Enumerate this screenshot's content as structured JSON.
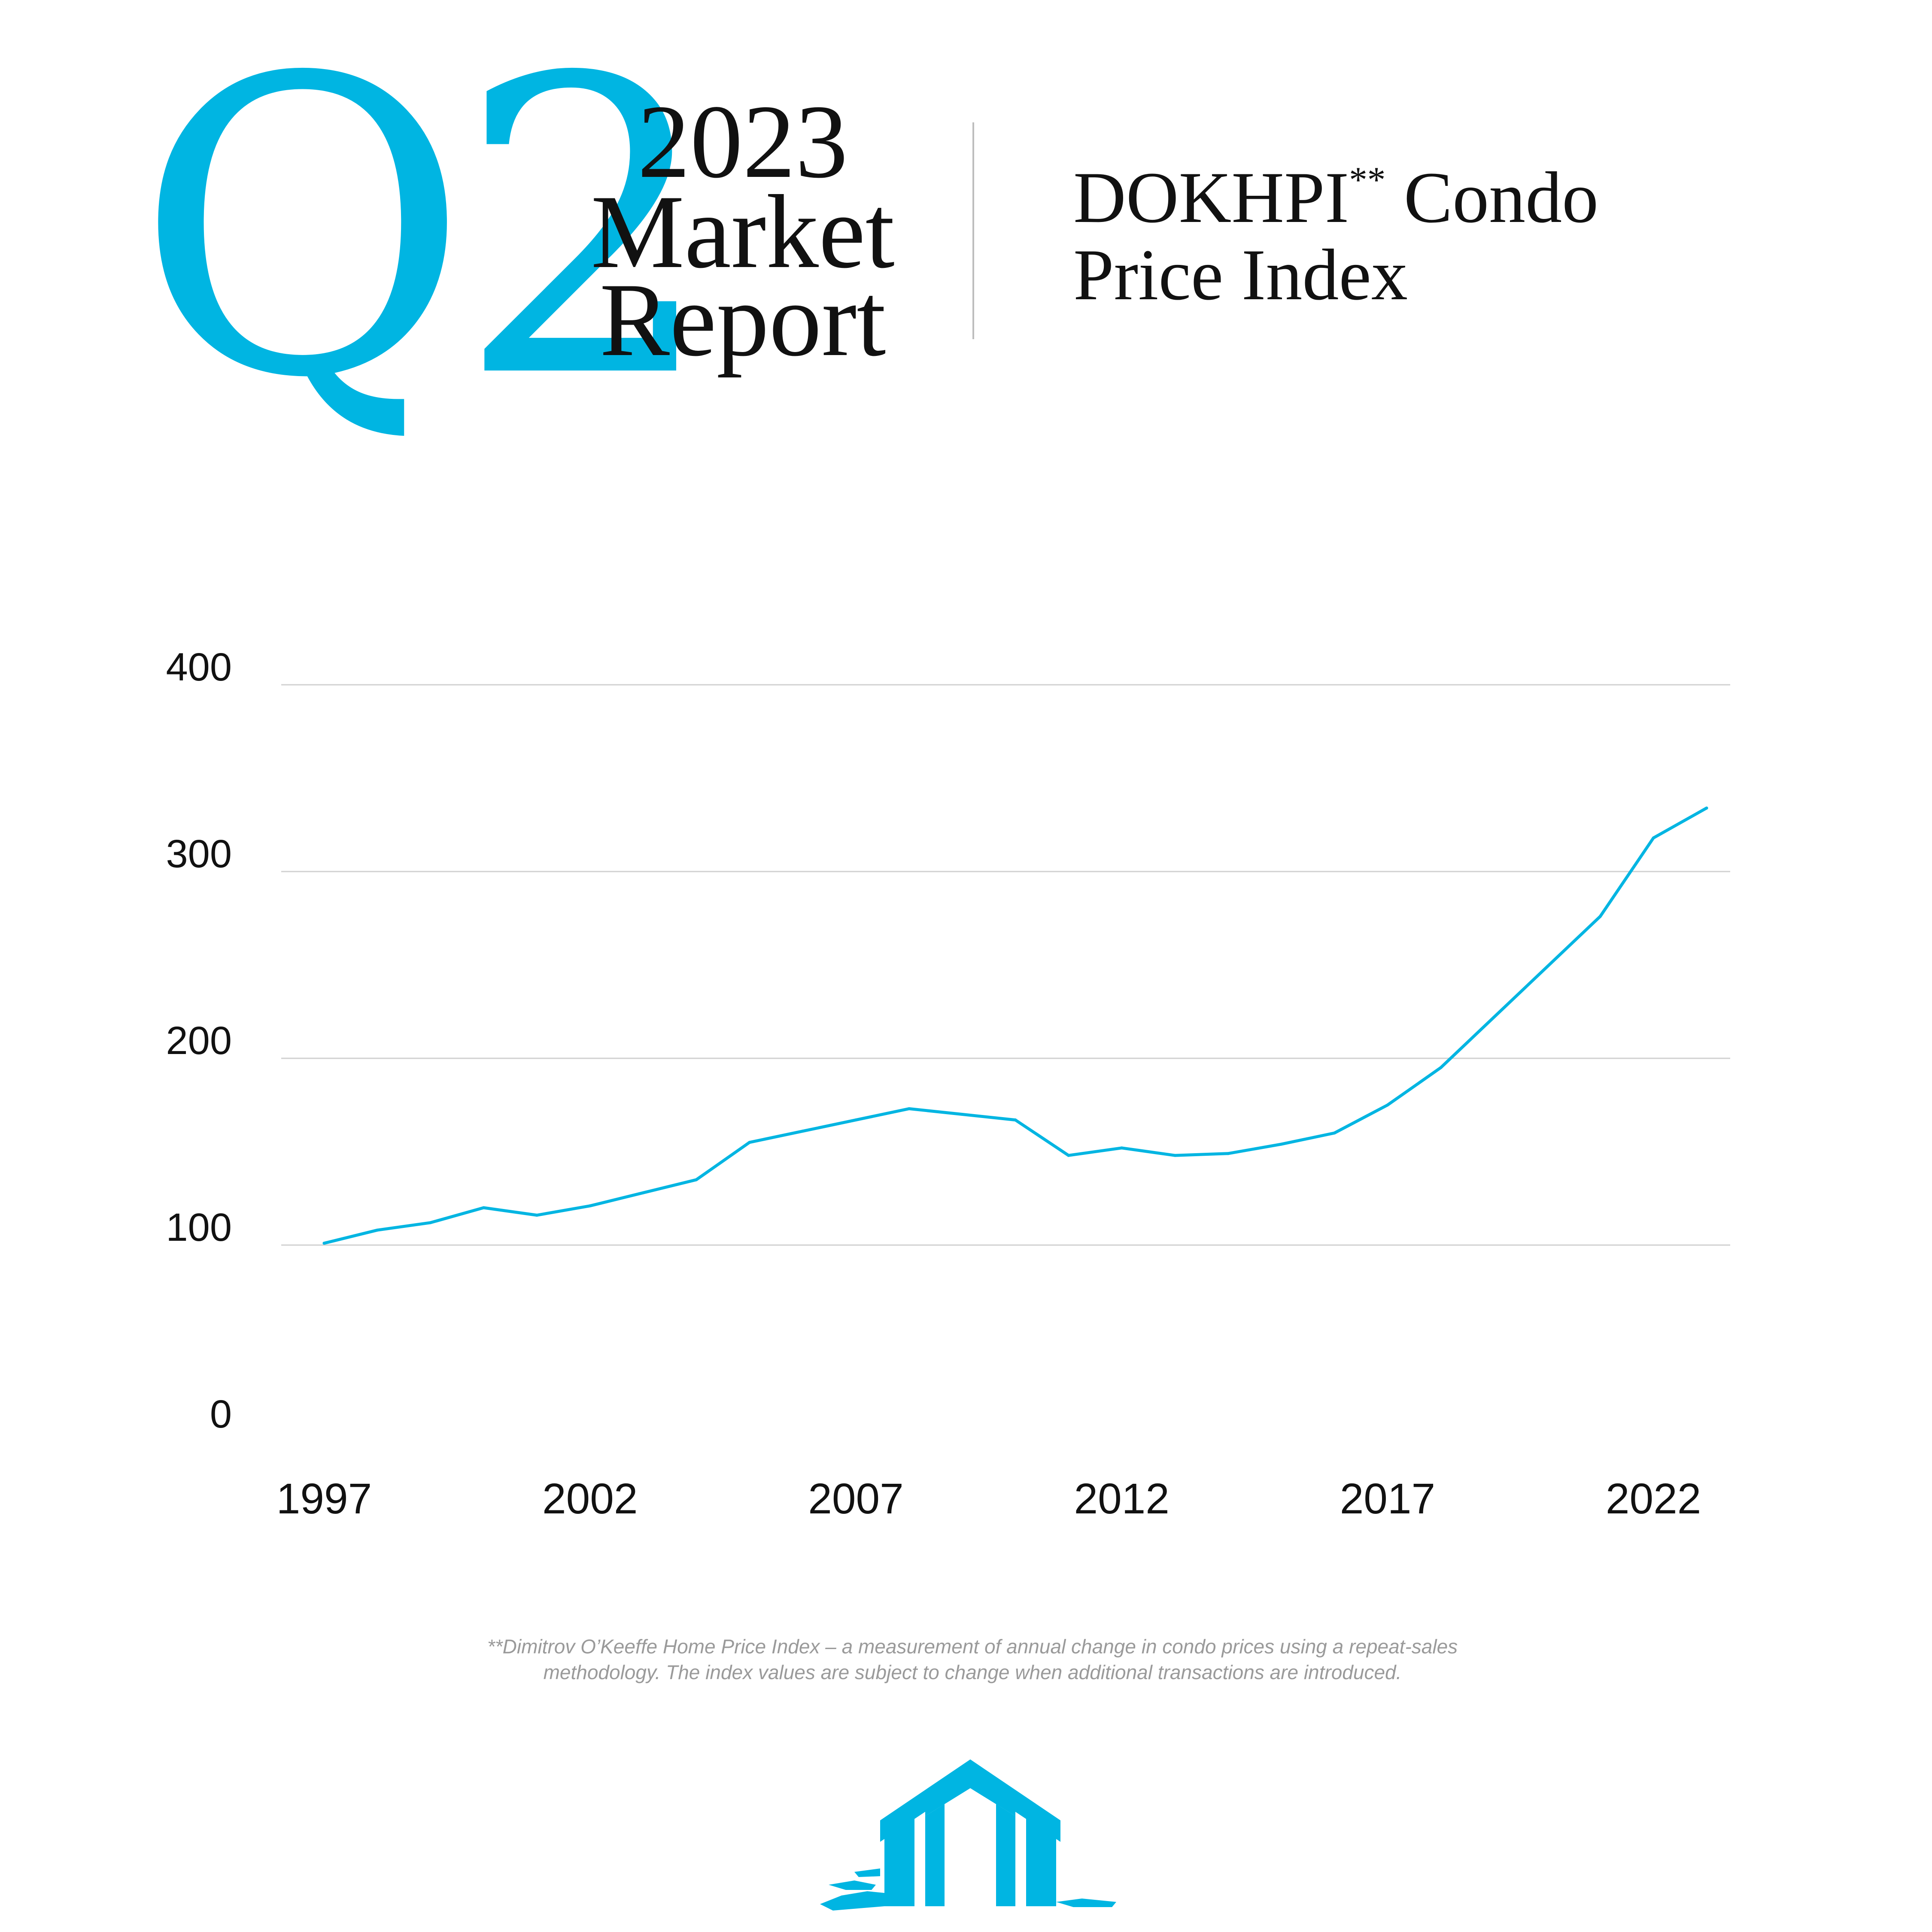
{
  "header": {
    "quarter": "Q2",
    "year": "2023",
    "line2": "Market",
    "line3": "Report",
    "title_main": "DOKHPI",
    "title_mark": "**",
    "title_suffix": " Condo",
    "title_line2": "Price Index"
  },
  "footnote": {
    "line1": "**Dimitrov O’Keeffe Home Price Index – a measurement of annual change in condo prices using a repeat-sales",
    "line2": "methodology. The index values are subject to change when additional transactions are introduced."
  },
  "colors": {
    "accent": "#00b5e2",
    "text": "#111111",
    "grid": "#d0d0d0",
    "footnote": "#9a9a9a"
  },
  "logo": {
    "icon": "house-brush-logo-icon"
  },
  "chart_data": {
    "type": "line",
    "title": "",
    "xlabel": "",
    "ylabel": "",
    "ylim": [
      0,
      400
    ],
    "xlim": [
      1997,
      2023
    ],
    "grid": true,
    "yticks": [
      0,
      100,
      200,
      300,
      400
    ],
    "xticks": [
      1997,
      2002,
      2007,
      2012,
      2017,
      2022
    ],
    "series": [
      {
        "color": "#00b5e2",
        "x": [
          1997,
          1998,
          1999,
          2000,
          2001,
          2002,
          2003,
          2004,
          2005,
          2006,
          2007,
          2008,
          2009,
          2010,
          2011,
          2012,
          2013,
          2014,
          2015,
          2016,
          2017,
          2018,
          2019,
          2020,
          2021,
          2022,
          2023
        ],
        "y": [
          101,
          108,
          112,
          120,
          116,
          121,
          128,
          135,
          155,
          161,
          167,
          173,
          170,
          167,
          148,
          152,
          148,
          149,
          154,
          160,
          175,
          195,
          222,
          249,
          276,
          318,
          334
        ]
      }
    ]
  }
}
